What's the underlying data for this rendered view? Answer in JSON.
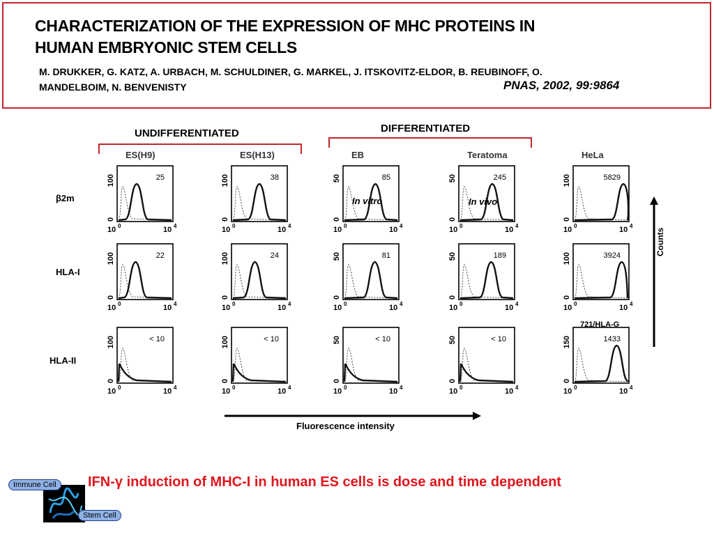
{
  "header": {
    "title_line1": "CHARACTERIZATION OF THE EXPRESSION OF MHC PROTEINS IN",
    "title_line2": "HUMAN EMBRYONIC STEM CELLS",
    "authors_line1": "M. DRUKKER, G. KATZ, A. URBACH, M. SCHULDINER, G. MARKEL, J. ITSKOVITZ-ELDOR, B. REUBINOFF, O.",
    "authors_line2": "MANDELBOIM, N. BENVENISTY",
    "citation": "PNAS, 2002, 99:9864"
  },
  "figure": {
    "group_undifferentiated": "UNDIFFERENTIATED",
    "group_differentiated": "DIFFERENTIATED",
    "columns": [
      "ES(H9)",
      "ES(H13)",
      "EB",
      "Teratoma",
      "HeLa"
    ],
    "rows": [
      "β2m",
      "HLA-I",
      "HLA-II"
    ],
    "note_in_vitro": "In vitro",
    "note_in_vivo": "In vivo",
    "hla_g_label": "721/HLA-G",
    "x_axis_label": "Fluorescence intensity",
    "y_axis_label": "Counts",
    "x_tick_min": "10",
    "x_tick_min_exp": "0",
    "x_tick_max": "10",
    "x_tick_max_exp": "4",
    "panels": [
      [
        {
          "ymax": "100",
          "value": "25"
        },
        {
          "ymax": "100",
          "value": "38"
        },
        {
          "ymax": "50",
          "value": "85"
        },
        {
          "ymax": "50",
          "value": "245"
        },
        {
          "ymax": "100",
          "value": "5829"
        }
      ],
      [
        {
          "ymax": "100",
          "value": "22"
        },
        {
          "ymax": "100",
          "value": "24"
        },
        {
          "ymax": "50",
          "value": "81"
        },
        {
          "ymax": "50",
          "value": "189"
        },
        {
          "ymax": "100",
          "value": "3924"
        }
      ],
      [
        {
          "ymax": "100",
          "value": "< 10"
        },
        {
          "ymax": "100",
          "value": "< 10"
        },
        {
          "ymax": "50",
          "value": "< 10"
        },
        {
          "ymax": "50",
          "value": "< 10"
        },
        {
          "ymax": "150",
          "value": "1433"
        }
      ]
    ],
    "peaks": [
      [
        0.35,
        0.5,
        0.58,
        0.6,
        0.9
      ],
      [
        0.33,
        0.42,
        0.57,
        0.58,
        0.87
      ],
      [
        -1,
        -1,
        -1,
        -1,
        0.78
      ]
    ]
  },
  "footer": {
    "conclusion_prefix": "IFN-",
    "conclusion_greek": "γ",
    "conclusion_rest": " induction of MHC-I in human ES cells is dose and time dependent",
    "badge_immune": "Immune Cell",
    "badge_stem": "Stem Cell"
  },
  "colors": {
    "accent": "#c0272d",
    "conclusion": "#e0161d"
  }
}
